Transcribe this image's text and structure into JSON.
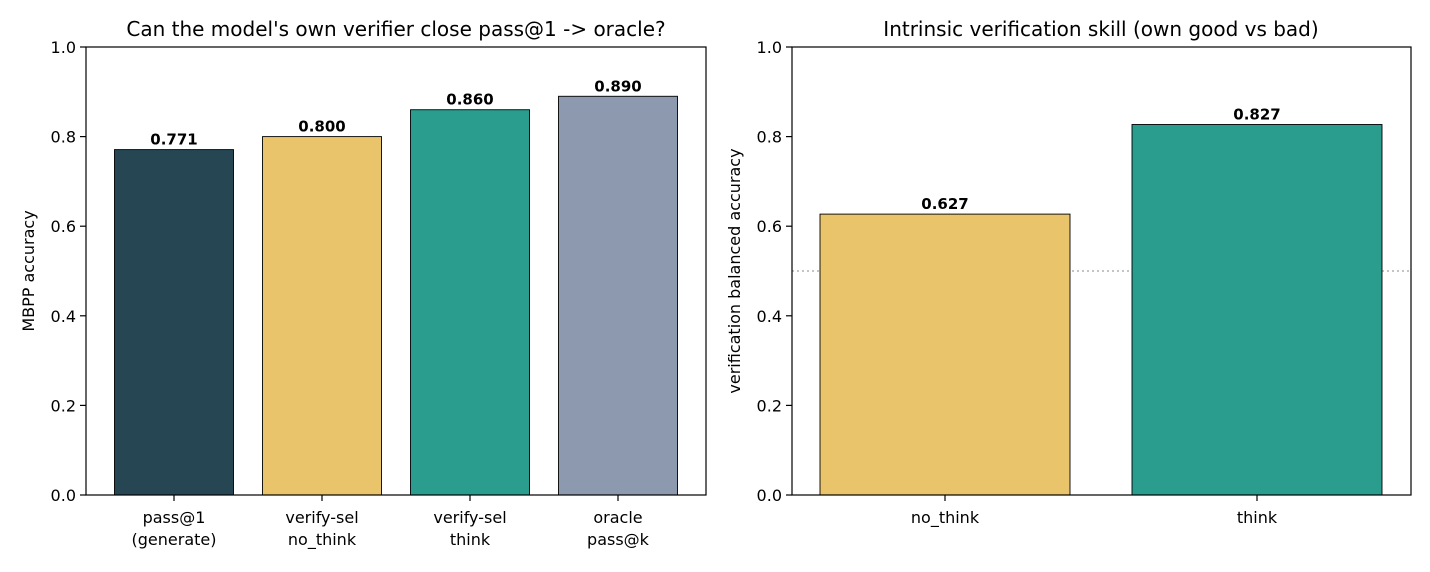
{
  "chart_data": [
    {
      "type": "bar",
      "title": "Can the model's own verifier close pass@1 -> oracle?",
      "xlabel": "",
      "ylabel": "MBPP accuracy",
      "ylim": [
        0,
        1.0
      ],
      "yticks": [
        "0.0",
        "0.2",
        "0.4",
        "0.6",
        "0.8",
        "1.0"
      ],
      "grid": false,
      "categories": [
        [
          "pass@1",
          "(generate)"
        ],
        [
          "verify-sel",
          "no_think"
        ],
        [
          "verify-sel",
          "think"
        ],
        [
          "oracle",
          "pass@k"
        ]
      ],
      "values": [
        0.771,
        0.8,
        0.86,
        0.89
      ],
      "value_labels": [
        "0.771",
        "0.800",
        "0.860",
        "0.890"
      ],
      "colors": [
        "#264653",
        "#e9c46a",
        "#2a9d8f",
        "#8d99ae"
      ]
    },
    {
      "type": "bar",
      "title": "Intrinsic verification skill (own good vs bad)",
      "xlabel": "",
      "ylabel": "verification balanced accuracy",
      "ylim": [
        0,
        1.0
      ],
      "yticks": [
        "0.0",
        "0.2",
        "0.4",
        "0.6",
        "0.8",
        "1.0"
      ],
      "grid": false,
      "reference_line": 0.5,
      "categories": [
        [
          "no_think"
        ],
        [
          "think"
        ]
      ],
      "values": [
        0.627,
        0.827
      ],
      "value_labels": [
        "0.627",
        "0.827"
      ],
      "colors": [
        "#e9c46a",
        "#2a9d8f"
      ]
    }
  ]
}
